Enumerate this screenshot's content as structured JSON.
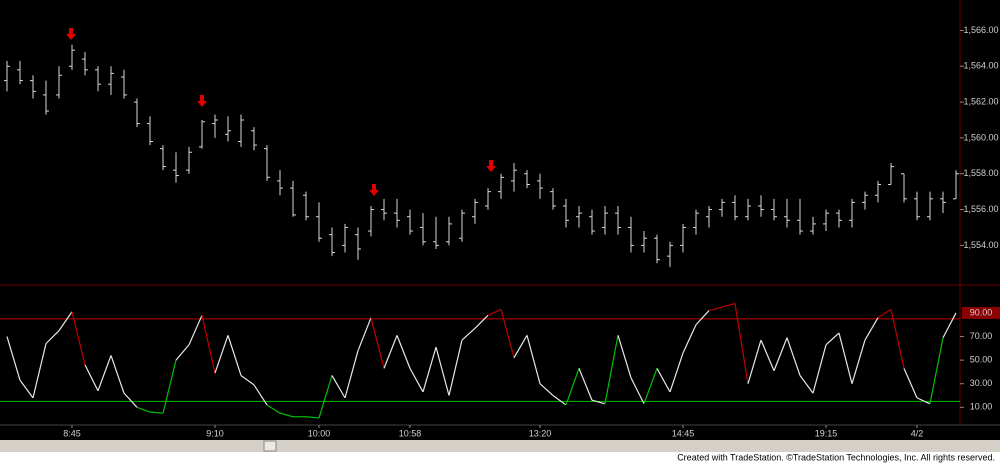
{
  "chart_data": [
    {
      "type": "ohlc",
      "color": "#d8d8d8",
      "categories": [
        null,
        null,
        null,
        null,
        null,
        "8:45",
        null,
        null,
        null,
        null,
        null,
        null,
        null,
        null,
        null,
        null,
        "9:10",
        null,
        null,
        null,
        null,
        null,
        null,
        null,
        "10:00",
        null,
        null,
        null,
        null,
        null,
        null,
        "10:58",
        null,
        null,
        null,
        null,
        null,
        null,
        null,
        null,
        null,
        "13:20",
        null,
        null,
        null,
        null,
        null,
        null,
        null,
        null,
        null,
        null,
        "14:45",
        null,
        null,
        null,
        null,
        null,
        null,
        null,
        null,
        null,
        null,
        "19:15",
        null,
        null,
        null,
        null,
        null,
        null,
        "4/2",
        null,
        null,
        null
      ],
      "open": [
        1563.2,
        1563.8,
        1563.2,
        1562.4,
        1562.4,
        1564.0,
        1564.4,
        1563.8,
        1563.0,
        1563.4,
        1562.0,
        1560.8,
        1559.4,
        1558.2,
        1558.2,
        1559.5,
        1560.8,
        1560.2,
        1559.8,
        1560.4,
        1559.4,
        1557.6,
        1557.2,
        1556.8,
        1555.6,
        1554.6,
        1554.0,
        1554.6,
        1554.8,
        1556.0,
        1555.8,
        1555.6,
        1555.0,
        1554.2,
        1554.2,
        1554.4,
        1555.6,
        1556.2,
        1557.0,
        1557.6,
        1558.0,
        1557.6,
        1557.0,
        1556.2,
        1555.6,
        1555.6,
        1555.0,
        1555.8,
        1555.0,
        1554.0,
        1554.4,
        1553.4,
        1554.0,
        1555.0,
        1555.6,
        1556.0,
        1556.4,
        1555.6,
        1556.2,
        1556.0,
        1555.6,
        1555.4,
        1554.8,
        1555.2,
        1555.8,
        1555.4,
        1556.4,
        1556.8,
        1557.4,
        1558.0,
        1556.6,
        1555.6,
        1556.6,
        1556.6
      ],
      "high": [
        1564.3,
        1564.3,
        1563.5,
        1563.2,
        1564.0,
        1565.2,
        1564.8,
        1564.0,
        1564.0,
        1563.8,
        1562.2,
        1561.2,
        1559.6,
        1559.2,
        1559.5,
        1561.0,
        1561.3,
        1561.2,
        1561.3,
        1560.6,
        1559.6,
        1558.2,
        1557.6,
        1557.0,
        1556.4,
        1555.0,
        1555.2,
        1555.0,
        1556.2,
        1556.6,
        1556.6,
        1556.0,
        1555.8,
        1555.6,
        1555.6,
        1556.0,
        1556.6,
        1557.2,
        1558.0,
        1558.6,
        1558.2,
        1558.0,
        1557.2,
        1556.6,
        1556.2,
        1556.0,
        1556.2,
        1556.2,
        1555.6,
        1554.8,
        1554.6,
        1554.2,
        1555.2,
        1556.0,
        1556.2,
        1556.6,
        1556.8,
        1556.6,
        1556.8,
        1556.6,
        1556.6,
        1556.6,
        1555.6,
        1556.0,
        1556.0,
        1556.6,
        1557.0,
        1557.6,
        1558.6,
        1558.0,
        1557.0,
        1557.0,
        1557.0,
        1558.2
      ],
      "low": [
        1562.6,
        1563.0,
        1562.2,
        1561.3,
        1562.2,
        1563.8,
        1563.5,
        1562.6,
        1562.4,
        1562.2,
        1560.6,
        1559.6,
        1558.2,
        1557.5,
        1558.0,
        1559.4,
        1560.0,
        1559.8,
        1559.5,
        1559.3,
        1557.6,
        1556.8,
        1555.6,
        1555.4,
        1554.2,
        1553.4,
        1553.6,
        1553.2,
        1554.5,
        1555.4,
        1555.0,
        1554.6,
        1554.0,
        1553.8,
        1554.0,
        1554.2,
        1555.2,
        1556.0,
        1556.6,
        1557.0,
        1557.2,
        1556.6,
        1556.0,
        1555.0,
        1555.0,
        1554.6,
        1554.6,
        1554.6,
        1553.6,
        1553.6,
        1553.0,
        1552.8,
        1553.6,
        1554.6,
        1555.0,
        1555.6,
        1555.4,
        1555.4,
        1555.6,
        1555.4,
        1555.0,
        1554.6,
        1554.6,
        1554.8,
        1555.0,
        1555.0,
        1556.0,
        1556.4,
        1557.4,
        1556.4,
        1555.4,
        1555.4,
        1555.8,
        1556.6
      ],
      "close": [
        1564.0,
        1563.2,
        1562.6,
        1561.5,
        1563.5,
        1564.9,
        1563.8,
        1563.0,
        1563.6,
        1562.4,
        1560.8,
        1559.8,
        1558.4,
        1557.9,
        1559.2,
        1560.9,
        1561.0,
        1560.4,
        1561.0,
        1559.6,
        1557.8,
        1557.2,
        1555.7,
        1555.6,
        1554.4,
        1553.6,
        1555.0,
        1553.8,
        1556.0,
        1555.8,
        1555.4,
        1554.8,
        1554.2,
        1554.0,
        1555.2,
        1555.8,
        1556.4,
        1557.0,
        1557.8,
        1558.2,
        1557.4,
        1557.2,
        1556.2,
        1555.4,
        1555.8,
        1554.8,
        1555.8,
        1555.0,
        1554.0,
        1554.4,
        1553.2,
        1554.0,
        1555.0,
        1555.8,
        1556.0,
        1556.4,
        1555.6,
        1556.2,
        1556.0,
        1555.6,
        1555.4,
        1554.8,
        1555.2,
        1555.8,
        1555.4,
        1556.4,
        1556.8,
        1557.4,
        1558.4,
        1556.6,
        1555.6,
        1556.6,
        1556.4,
        1558.0
      ],
      "ylim": [
        1551.9,
        1567.7
      ],
      "yticks": [
        {
          "value": 1554,
          "label": "1,554.00"
        },
        {
          "value": 1556,
          "label": "1,556.00"
        },
        {
          "value": 1558,
          "label": "1,558.00"
        },
        {
          "value": 1560,
          "label": "1,560.00"
        },
        {
          "value": 1562,
          "label": "1,562.00"
        },
        {
          "value": 1564,
          "label": "1,564.00"
        },
        {
          "value": 1566,
          "label": "1,566.00"
        }
      ]
    },
    {
      "type": "line",
      "series": [
        {
          "color": "#e8e8e8",
          "values": [
            70,
            33,
            18,
            64,
            75,
            91,
            46,
            24,
            54,
            22,
            10,
            6,
            5,
            50,
            63,
            88,
            39,
            71,
            37,
            29,
            12,
            5,
            2,
            2,
            1,
            37,
            18,
            58,
            86,
            43,
            71,
            43,
            23,
            61,
            20,
            67,
            77,
            88,
            93,
            52,
            71,
            30,
            20,
            12,
            43,
            16,
            13,
            71,
            35,
            13,
            43,
            23,
            56,
            80,
            92,
            95,
            98,
            30,
            67,
            41,
            69,
            37,
            22,
            63,
            73,
            30,
            67,
            86,
            93,
            43,
            18,
            13,
            69,
            90
          ]
        }
      ],
      "levels": [
        {
          "value": 85,
          "color": "#c00000"
        },
        {
          "value": 15,
          "color": "#00c000"
        }
      ],
      "ylim": [
        -5,
        112
      ],
      "yticks": [
        {
          "value": 10,
          "label": "10.00"
        },
        {
          "value": 30,
          "label": "30.00"
        },
        {
          "value": 50,
          "label": "50.00"
        },
        {
          "value": 70,
          "label": "70.00"
        }
      ],
      "last_value": {
        "value": 90,
        "label": "90.00"
      }
    }
  ],
  "footer": "Created with TradeStation. ©TradeStation Technologies, Inc. All rights reserved."
}
